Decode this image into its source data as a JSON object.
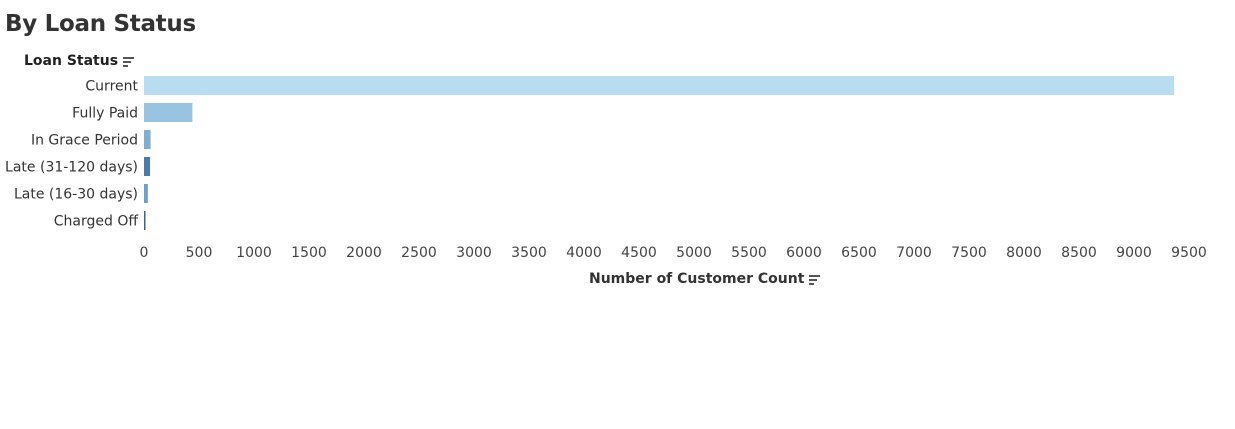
{
  "title": "By Loan Status",
  "chart_data": {
    "type": "bar",
    "orientation": "horizontal",
    "title": "By Loan Status",
    "ylabel": "Loan Status",
    "xlabel": "Number of Customer Count",
    "categories": [
      "Current",
      "Fully Paid",
      "In Grace Period",
      "Late (31-120 days)",
      "Late (16-30 days)",
      "Charged Off"
    ],
    "values": [
      9365,
      440,
      60,
      55,
      35,
      10
    ],
    "colors": [
      "#b9dcf0",
      "#98c4e2",
      "#7eafd3",
      "#4a7bab",
      "#6f9fcc",
      "#3a6592"
    ],
    "xlim": [
      0,
      9500
    ],
    "xticks": [
      "0",
      "500",
      "1000",
      "1500",
      "2000",
      "2500",
      "3000",
      "3500",
      "4000",
      "4500",
      "5000",
      "5500",
      "6000",
      "6500",
      "7000",
      "7500",
      "8000",
      "8500",
      "9000",
      "9500"
    ],
    "grid": false,
    "legend": "none"
  }
}
